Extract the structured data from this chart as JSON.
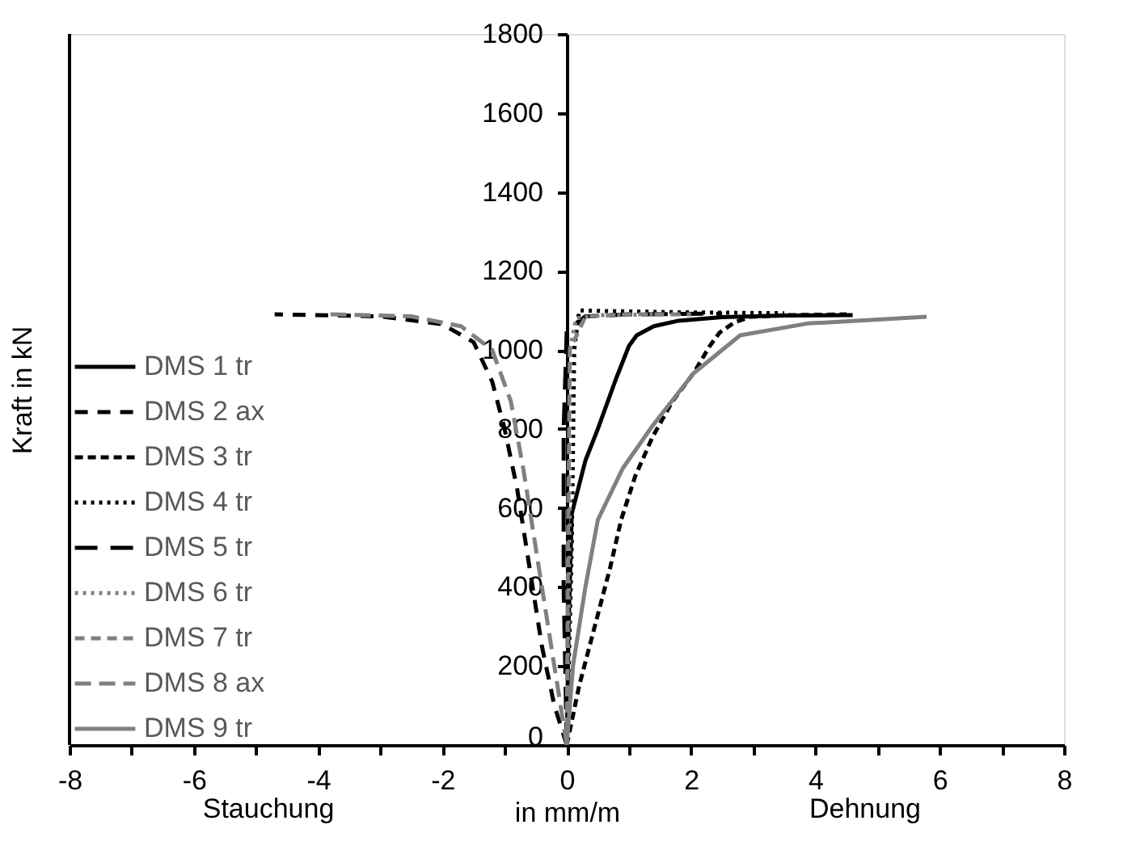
{
  "chart_data": {
    "type": "line",
    "xlabel": "in mm/m",
    "ylabel": "Kraft in kN",
    "annotations": [
      "Stauchung",
      "Dehnung"
    ],
    "xlim": [
      -8,
      8
    ],
    "ylim": [
      0,
      1800
    ],
    "xticks": [
      -8,
      {
        "value": -7,
        "label": null
      },
      -6,
      {
        "value": -5,
        "label": null
      },
      -4,
      {
        "value": -3,
        "label": null
      },
      -2,
      {
        "value": -1,
        "label": null
      },
      0,
      {
        "value": 1,
        "label": null
      },
      2,
      {
        "value": 3,
        "label": null
      },
      4,
      {
        "value": 5,
        "label": null
      },
      6,
      {
        "value": 7,
        "label": null
      },
      8
    ],
    "yticks": [
      0,
      200,
      400,
      600,
      800,
      1000,
      1200,
      1400,
      1600,
      1800
    ],
    "grid": false,
    "legend": "bottom left",
    "marker": "none",
    "series": [
      {
        "name": "DMS 1 tr",
        "color": "#000000",
        "line_style": "solid",
        "x": [
          0,
          0.03,
          0.08,
          0.3,
          0.5,
          0.79,
          1.0,
          1.125,
          1.4,
          1.8,
          2.5,
          3.5,
          4.6
        ],
        "values": [
          0,
          300,
          585,
          720,
          800,
          926,
          1010,
          1037,
          1060,
          1074,
          1083,
          1087,
          1088
        ]
      },
      {
        "name": "DMS 2 ax",
        "color": "#000000",
        "line_style": "dashed",
        "x": [
          0,
          -0.2,
          -0.4,
          -0.6,
          -0.8,
          -1.0,
          -1.2,
          -1.5,
          -2.0,
          -3.0,
          -4.7
        ],
        "values": [
          0,
          100,
          250,
          450,
          650,
          800,
          920,
          1020,
          1065,
          1085,
          1090
        ]
      },
      {
        "name": "DMS 3 tr",
        "color": "#000000",
        "line_style": "dashed",
        "x": [
          0,
          0.2,
          0.45,
          0.7,
          0.875,
          1.1,
          1.375,
          1.7,
          2.04,
          2.3,
          2.46,
          2.7,
          2.96,
          3.5,
          4.5
        ],
        "values": [
          0,
          150,
          300,
          450,
          570,
          680,
          778,
          870,
          941,
          1010,
          1044,
          1070,
          1084,
          1088,
          1090
        ]
      },
      {
        "name": "DMS 4 tr",
        "color": "#000000",
        "line_style": "dotted",
        "x": [
          0,
          0.08,
          0.12,
          0.2,
          0.8,
          2.0,
          3.5
        ],
        "values": [
          0,
          500,
          1000,
          1100,
          1098,
          1095,
          1093
        ]
      },
      {
        "name": "DMS 5 tr",
        "color": "#000000",
        "line_style": "dashed",
        "x": [
          0,
          -0.05,
          -0.05,
          0,
          0.3,
          1.0,
          2.5
        ],
        "values": [
          0,
          400,
          800,
          1050,
          1085,
          1090,
          1092
        ]
      },
      {
        "name": "DMS 6 tr",
        "color": "#808080",
        "line_style": "dotted",
        "x": [
          0,
          0.05,
          0.05,
          0.15,
          0.5,
          1.5
        ],
        "values": [
          0,
          600,
          1000,
          1080,
          1088,
          1090
        ]
      },
      {
        "name": "DMS 7 tr",
        "color": "#808080",
        "line_style": "dashed",
        "x": [
          0,
          0.02,
          0.05,
          0.3,
          1.0,
          2.0
        ],
        "values": [
          0,
          500,
          1000,
          1085,
          1090,
          1090
        ]
      },
      {
        "name": "DMS 8 ax",
        "color": "#808080",
        "line_style": "dashed",
        "x": [
          0,
          -0.1,
          -0.3,
          -0.5,
          -0.7,
          -0.9,
          -1.2,
          -1.7,
          -2.5,
          -3.8
        ],
        "values": [
          0,
          100,
          300,
          500,
          700,
          870,
          1000,
          1060,
          1085,
          1090
        ]
      },
      {
        "name": "DMS 9 tr",
        "color": "#808080",
        "line_style": "solid",
        "x": [
          0,
          0.1,
          0.3,
          0.5,
          0.9,
          1.375,
          2.04,
          2.79,
          3.875,
          5.79
        ],
        "values": [
          0,
          200,
          400,
          570,
          700,
          807,
          941,
          1037,
          1067,
          1084
        ]
      }
    ]
  }
}
